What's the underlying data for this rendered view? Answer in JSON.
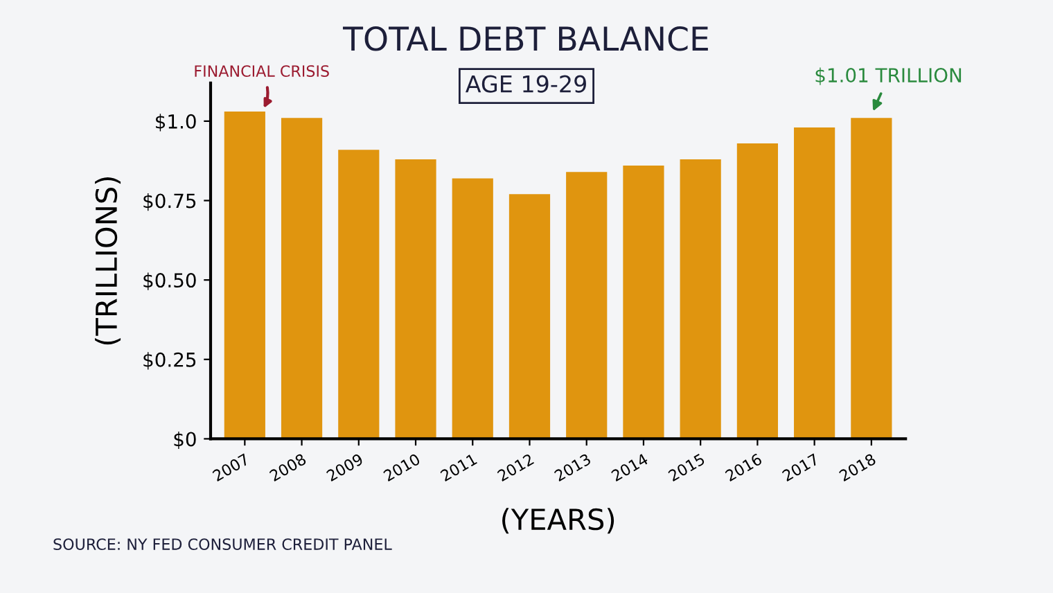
{
  "chart_data": {
    "type": "bar",
    "title": "TOTAL DEBT BALANCE",
    "subtitle": "AGE 19-29",
    "xlabel": "(YEARS)",
    "ylabel": "(TRILLIONS)",
    "categories": [
      "2007",
      "2008",
      "2009",
      "2010",
      "2011",
      "2012",
      "2013",
      "2014",
      "2015",
      "2016",
      "2017",
      "2018"
    ],
    "values": [
      1.03,
      1.01,
      0.91,
      0.88,
      0.82,
      0.77,
      0.84,
      0.86,
      0.88,
      0.93,
      0.98,
      1.01
    ],
    "color": "#e0950f",
    "ylim": [
      0,
      1.12
    ],
    "yticks": [
      {
        "value": 0,
        "label": "$0"
      },
      {
        "value": 0.25,
        "label": "$0.25"
      },
      {
        "value": 0.5,
        "label": "$0.50"
      },
      {
        "value": 0.75,
        "label": "$0.75"
      },
      {
        "value": 1.0,
        "label": "$1.0"
      }
    ],
    "annotations": [
      {
        "text": "FINANCIAL CRISIS",
        "x": "2007",
        "y": 1.03
      },
      {
        "text": "$1.01 TRILLION",
        "x": "2018",
        "y": 1.01
      },
      "SOURCE: NY FED CONSUMER CREDIT PANEL"
    ]
  }
}
